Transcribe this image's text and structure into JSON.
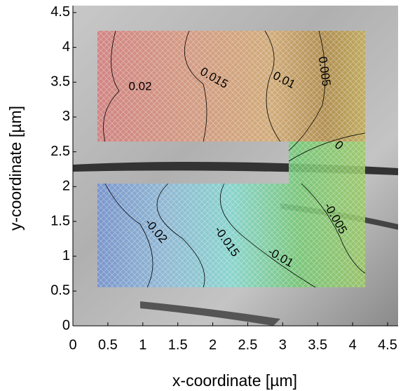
{
  "chart_data": {
    "type": "contour",
    "xlabel": "x-coordinate [µm]",
    "ylabel": "y-coordinate [µm]",
    "xlim": [
      0,
      4.65
    ],
    "ylim": [
      0,
      4.6
    ],
    "xticks": [
      0,
      0.5,
      1,
      1.5,
      2,
      2.5,
      3,
      3.5,
      4,
      4.5
    ],
    "yticks": [
      0,
      0.5,
      1,
      1.5,
      2,
      2.5,
      3,
      3.5,
      4,
      4.5
    ],
    "levels": [
      0.02,
      0.015,
      0.01,
      0.005,
      0,
      -0.005,
      -0.01,
      -0.015,
      -0.02
    ]
  }
}
